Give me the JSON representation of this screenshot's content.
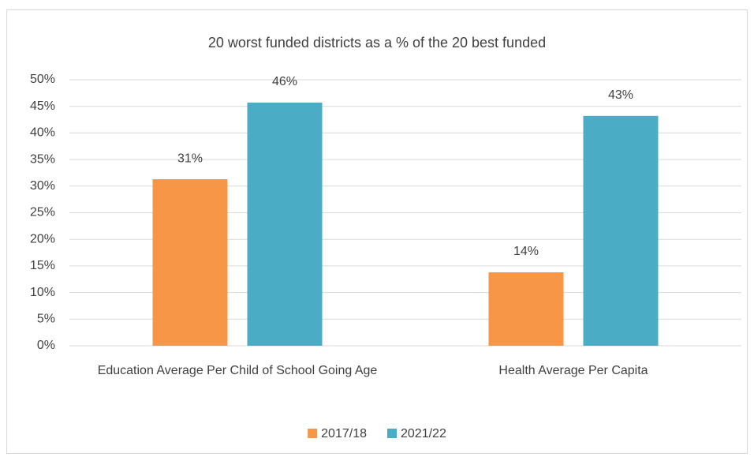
{
  "chart_data": {
    "type": "bar",
    "title": "20 worst funded districts as a % of the 20 best funded",
    "categories": [
      "Education Average Per Child of School Going Age",
      "Health Average Per Capita"
    ],
    "series": [
      {
        "name": "2017/18",
        "color": "#f79646",
        "values": [
          31.3,
          13.8
        ],
        "value_labels": [
          "31%",
          "14%"
        ]
      },
      {
        "name": "2021/22",
        "color": "#4bacc6",
        "values": [
          45.7,
          43.2
        ],
        "value_labels": [
          "46%",
          "43%"
        ]
      }
    ],
    "ylim": [
      0,
      50
    ],
    "yticks": [
      {
        "value": 0,
        "label": "0%"
      },
      {
        "value": 5,
        "label": "5%"
      },
      {
        "value": 10,
        "label": "10%"
      },
      {
        "value": 15,
        "label": "15%"
      },
      {
        "value": 20,
        "label": "20%"
      },
      {
        "value": 25,
        "label": "25%"
      },
      {
        "value": 30,
        "label": "30%"
      },
      {
        "value": 35,
        "label": "35%"
      },
      {
        "value": 40,
        "label": "40%"
      },
      {
        "value": 45,
        "label": "45%"
      },
      {
        "value": 50,
        "label": "50%"
      }
    ],
    "grid": true,
    "legend": "bottom"
  }
}
